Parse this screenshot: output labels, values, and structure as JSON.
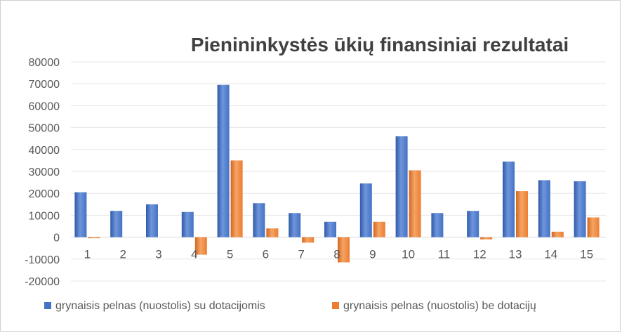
{
  "chart_data": {
    "type": "bar",
    "title": "Pienininkystės ūkių finansiniai rezultatai",
    "xlabel": "",
    "ylabel": "",
    "categories": [
      "1",
      "2",
      "3",
      "4",
      "5",
      "6",
      "7",
      "8",
      "9",
      "10",
      "11",
      "12",
      "13",
      "14",
      "15"
    ],
    "series": [
      {
        "name": "grynaisis pelnas (nuostolis) su dotacijomis",
        "color": "#4472c4",
        "values": [
          20500,
          12000,
          15000,
          11500,
          69500,
          15500,
          11000,
          7000,
          24500,
          46000,
          11000,
          12000,
          34500,
          26000,
          25500
        ]
      },
      {
        "name": "grynaisis pelnas (nuostolis) be dotacijų",
        "color": "#ed7d31",
        "values": [
          -500,
          0,
          0,
          -8000,
          35000,
          4000,
          -2500,
          -11500,
          7000,
          30500,
          0,
          -1000,
          21000,
          2500,
          9000
        ]
      }
    ],
    "ylim": [
      -20000,
      80000
    ],
    "yticks": [
      80000,
      70000,
      60000,
      50000,
      40000,
      30000,
      20000,
      10000,
      0,
      -10000,
      -20000
    ],
    "ytick_labels": [
      "80000",
      "70000",
      "60000",
      "50000",
      "40000",
      "30000",
      "20000",
      "10000",
      "0",
      "-10000",
      "-20000"
    ],
    "grid": true,
    "legend_position": "bottom"
  }
}
